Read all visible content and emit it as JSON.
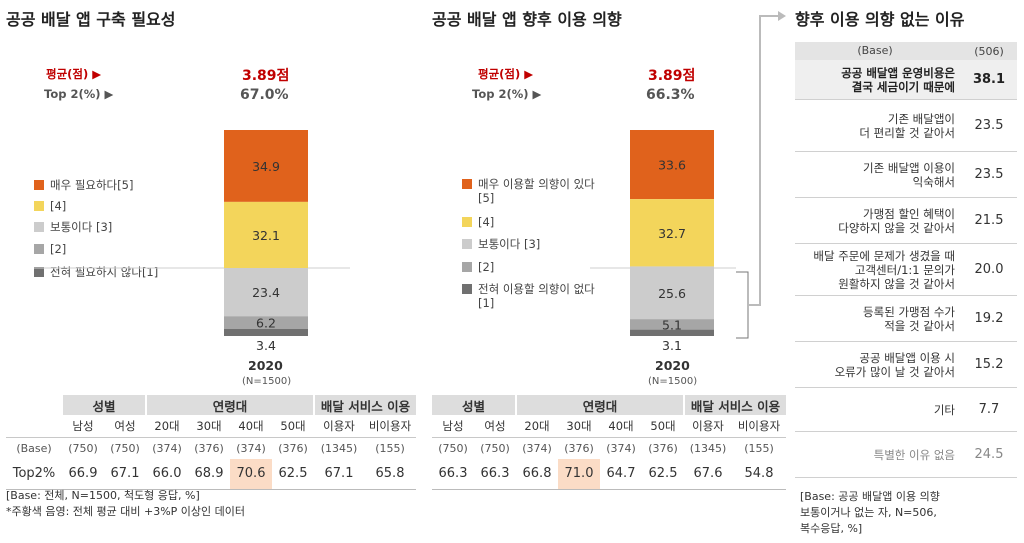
{
  "colors": {
    "level5": "#e0621c",
    "level4": "#f3d55b",
    "level3": "#cccccc",
    "level2": "#a6a6a6",
    "level1": "#707070",
    "highlight": "#fbdcc6",
    "accent": "#c00000"
  },
  "legend_labels": {
    "need": [
      "매우 필요하다[5]",
      "[4]",
      "보통이다 [3]",
      "[2]",
      "전혀 필요하지 않다[1]"
    ],
    "intent": [
      "매우 이용할 의향이 있다[5]",
      "[4]",
      "보통이다 [3]",
      "[2]",
      "전혀 이용할 의향이 없다[1]"
    ]
  },
  "labels": {
    "avg": "평균(점) ▶",
    "top2": "Top 2(%) ▶"
  },
  "demo_table": {
    "groups": [
      "성별",
      "연령대",
      "배달 서비스 이용"
    ],
    "subs": [
      "남성",
      "여성",
      "20대",
      "30대",
      "40대",
      "50대",
      "이용자",
      "비이용자"
    ],
    "base_label": "(Base)",
    "top2_label": "Top2%"
  },
  "chart_data": [
    {
      "type": "bar",
      "title": "공공 배달 앱 구축 필요성",
      "categories": [
        "2020"
      ],
      "n_label": "(N=1500)",
      "avg": "3.89점",
      "top2": "67.0%",
      "series": [
        {
          "name": "매우 필요하다[5]",
          "values": [
            34.9
          ]
        },
        {
          "name": "[4]",
          "values": [
            32.1
          ]
        },
        {
          "name": "보통이다 [3]",
          "values": [
            23.4
          ]
        },
        {
          "name": "[2]",
          "values": [
            6.2
          ]
        },
        {
          "name": "전혀 필요하지 않다[1]",
          "values": [
            3.4
          ]
        }
      ],
      "ylim": [
        0,
        100
      ],
      "demographics": {
        "base": [
          "(750)",
          "(750)",
          "(374)",
          "(376)",
          "(374)",
          "(376)",
          "(1345)",
          "(155)"
        ],
        "top2": [
          "66.9",
          "67.1",
          "66.0",
          "68.9",
          "70.6",
          "62.5",
          "67.1",
          "65.8"
        ],
        "highlight_index": 4
      }
    },
    {
      "type": "bar",
      "title": "공공 배달 앱 향후 이용 의향",
      "categories": [
        "2020"
      ],
      "n_label": "(N=1500)",
      "avg": "3.89점",
      "top2": "66.3%",
      "series": [
        {
          "name": "매우 이용할 의향이 있다[5]",
          "values": [
            33.6
          ]
        },
        {
          "name": "[4]",
          "values": [
            32.7
          ]
        },
        {
          "name": "보통이다 [3]",
          "values": [
            25.6
          ]
        },
        {
          "name": "[2]",
          "values": [
            5.1
          ]
        },
        {
          "name": "전혀 이용할 의향이 없다[1]",
          "values": [
            3.1
          ]
        }
      ],
      "ylim": [
        0,
        100
      ],
      "demographics": {
        "base": [
          "(750)",
          "(750)",
          "(374)",
          "(376)",
          "(374)",
          "(376)",
          "(1345)",
          "(155)"
        ],
        "top2": [
          "66.3",
          "66.3",
          "66.8",
          "71.0",
          "64.7",
          "62.5",
          "67.6",
          "54.8"
        ],
        "highlight_index": 3
      }
    },
    {
      "type": "table",
      "title": "향후 이용 의향 없는 이유",
      "header": {
        "label": "(Base)",
        "value": "(506)"
      },
      "rows": [
        {
          "label": [
            "공공 배달앱 운영비용은",
            "결국 세금이기 때문에"
          ],
          "value": "38.1"
        },
        {
          "label": [
            "기존 배달앱이",
            "더 편리할 것 같아서"
          ],
          "value": "23.5"
        },
        {
          "label": [
            "기존 배달앱 이용이",
            "익숙해서"
          ],
          "value": "23.5"
        },
        {
          "label": [
            "가맹점 할인 혜택이",
            "다양하지 않을 것 같아서"
          ],
          "value": "21.5"
        },
        {
          "label": [
            "배달 주문에 문제가 생겼을 때",
            "고객센터/1:1 문의가",
            "원활하지 않을 것 같아서"
          ],
          "value": "20.0"
        },
        {
          "label": [
            "등록된 가맹점 수가",
            "적을 것 같아서"
          ],
          "value": "19.2"
        },
        {
          "label": [
            "공공 배달앱 이용 시",
            "오류가 많이 날 것 같아서"
          ],
          "value": "15.2"
        },
        {
          "label": [
            "기타"
          ],
          "value": "7.7"
        },
        {
          "label": [
            "특별한 이유 없음"
          ],
          "value": "24.5"
        }
      ]
    }
  ],
  "notes": {
    "left": [
      "[Base: 전체, N=1500, 척도형 응답, %]",
      "*주황색 음영: 전체 평균 대비 +3%P 이상인 데이터"
    ],
    "right": [
      "[Base: 공공 배달앱 이용 의향",
      "보통이거나 없는 자, N=506,",
      "복수응답, %]"
    ]
  }
}
